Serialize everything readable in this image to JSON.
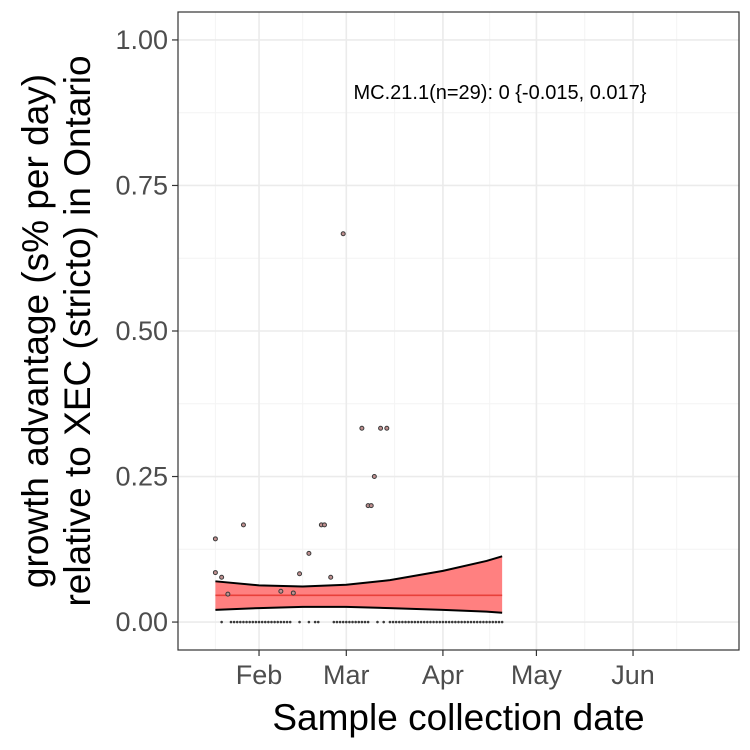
{
  "chart_data": {
    "type": "scatter",
    "title": "",
    "xlabel": "Sample collection date",
    "ylabel_lines": [
      "growth advantage (s% per day)",
      "relative to XEC (stricto) in Ontario"
    ],
    "annotation": "MC.21.1(n=29): 0 {-0.015, 0.017}",
    "x_range": [
      "2025-01-06",
      "2025-07-05"
    ],
    "ylim": [
      -0.048,
      1.048
    ],
    "x_ticks": [
      {
        "date": "2025-02-01",
        "label": "Feb"
      },
      {
        "date": "2025-03-01",
        "label": "Mar"
      },
      {
        "date": "2025-04-01",
        "label": "Apr"
      },
      {
        "date": "2025-05-01",
        "label": "May"
      },
      {
        "date": "2025-06-01",
        "label": "Jun"
      }
    ],
    "y_ticks": [
      {
        "value": 0.0,
        "label": "0.00"
      },
      {
        "value": 0.25,
        "label": "0.25"
      },
      {
        "value": 0.5,
        "label": "0.50"
      },
      {
        "value": 0.75,
        "label": "0.75"
      },
      {
        "value": 1.0,
        "label": "1.00"
      }
    ],
    "grid": true,
    "colors": {
      "band_fill": "#ff8080",
      "fit_line": "#e8403a",
      "band_edge": "#000000",
      "point_fill": "#c09090",
      "point_stroke": "#3a3a3a",
      "grid_major": "#ebebeb",
      "grid_minor": "#f4f4f4",
      "panel_border": "#333333"
    },
    "fit": {
      "x": [
        "2025-01-18",
        "2025-02-01",
        "2025-02-15",
        "2025-03-01",
        "2025-03-15",
        "2025-04-01",
        "2025-04-15",
        "2025-04-20"
      ],
      "mean": [
        0.046,
        0.046,
        0.046,
        0.046,
        0.046,
        0.046,
        0.046,
        0.046
      ],
      "upper": [
        0.07,
        0.063,
        0.061,
        0.064,
        0.072,
        0.088,
        0.105,
        0.113
      ],
      "lower": [
        0.021,
        0.024,
        0.026,
        0.026,
        0.024,
        0.021,
        0.018,
        0.016
      ]
    },
    "points": [
      {
        "x": "2025-01-18",
        "y": 0.085
      },
      {
        "x": "2025-01-18",
        "y": 0.143
      },
      {
        "x": "2025-01-20",
        "y": 0.077
      },
      {
        "x": "2025-01-22",
        "y": 0.048
      },
      {
        "x": "2025-01-27",
        "y": 0.167
      },
      {
        "x": "2025-02-08",
        "y": 0.053
      },
      {
        "x": "2025-02-12",
        "y": 0.05
      },
      {
        "x": "2025-02-14",
        "y": 0.083
      },
      {
        "x": "2025-02-17",
        "y": 0.118
      },
      {
        "x": "2025-02-21",
        "y": 0.167
      },
      {
        "x": "2025-02-22",
        "y": 0.167
      },
      {
        "x": "2025-02-24",
        "y": 0.077
      },
      {
        "x": "2025-02-28",
        "y": 0.667
      },
      {
        "x": "2025-03-06",
        "y": 0.333
      },
      {
        "x": "2025-03-08",
        "y": 0.2
      },
      {
        "x": "2025-03-09",
        "y": 0.2
      },
      {
        "x": "2025-03-10",
        "y": 0.25
      },
      {
        "x": "2025-03-12",
        "y": 0.333
      },
      {
        "x": "2025-03-14",
        "y": 0.333
      }
    ],
    "zero_points": {
      "dates": [
        "2025-01-20",
        "2025-01-23",
        "2025-01-24",
        "2025-01-25",
        "2025-01-26",
        "2025-01-27",
        "2025-01-28",
        "2025-01-29",
        "2025-01-30",
        "2025-01-31",
        "2025-02-01",
        "2025-02-02",
        "2025-02-03",
        "2025-02-04",
        "2025-02-05",
        "2025-02-06",
        "2025-02-07",
        "2025-02-08",
        "2025-02-09",
        "2025-02-10",
        "2025-02-11",
        "2025-02-14",
        "2025-02-17",
        "2025-02-19",
        "2025-02-20",
        "2025-02-25",
        "2025-02-26",
        "2025-02-27",
        "2025-02-28",
        "2025-03-01",
        "2025-03-02",
        "2025-03-03",
        "2025-03-04",
        "2025-03-05",
        "2025-03-06",
        "2025-03-07",
        "2025-03-08",
        "2025-03-11",
        "2025-03-13",
        "2025-03-15",
        "2025-03-16",
        "2025-03-17",
        "2025-03-18",
        "2025-03-19",
        "2025-03-20",
        "2025-03-21",
        "2025-03-22",
        "2025-03-23",
        "2025-03-24",
        "2025-03-25",
        "2025-03-26",
        "2025-03-27",
        "2025-03-28",
        "2025-03-29",
        "2025-03-30",
        "2025-03-31",
        "2025-04-01",
        "2025-04-02",
        "2025-04-03",
        "2025-04-04",
        "2025-04-05",
        "2025-04-06",
        "2025-04-07",
        "2025-04-08",
        "2025-04-09",
        "2025-04-10",
        "2025-04-11",
        "2025-04-12",
        "2025-04-13",
        "2025-04-14",
        "2025-04-15",
        "2025-04-16",
        "2025-04-17",
        "2025-04-18",
        "2025-04-19",
        "2025-04-20"
      ],
      "y": 0
    }
  }
}
